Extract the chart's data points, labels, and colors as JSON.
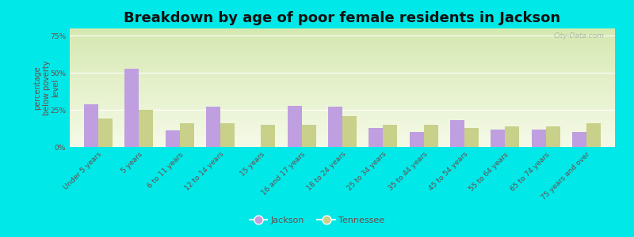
{
  "title": "Breakdown by age of poor female residents in Jackson",
  "ylabel": "percentage\nbelow poverty\nlevel",
  "categories": [
    "Under 5 years",
    "5 years",
    "6 to 11 years",
    "12 to 14 years",
    "15 years",
    "16 and 17 years",
    "18 to 24 years",
    "25 to 34 years",
    "35 to 44 years",
    "45 to 54 years",
    "55 to 64 years",
    "65 to 74 years",
    "75 years and over"
  ],
  "jackson_values": [
    29,
    53,
    11,
    27,
    0,
    28,
    27,
    13,
    10,
    18,
    12,
    12,
    10
  ],
  "tennessee_values": [
    19,
    25,
    16,
    16,
    15,
    15,
    21,
    15,
    15,
    13,
    14,
    14,
    16
  ],
  "jackson_color": "#bf9fdf",
  "tennessee_color": "#c8d08a",
  "plot_bg_top": "#d5e8b0",
  "plot_bg_bottom": "#f5fae8",
  "outer_bg": "#00e8e8",
  "ylim": [
    0,
    80
  ],
  "yticks": [
    0,
    25,
    50,
    75
  ],
  "ytick_labels": [
    "0%",
    "25%",
    "50%",
    "75%"
  ],
  "bar_width": 0.35,
  "title_fontsize": 13,
  "tick_fontsize": 6.5,
  "ylabel_fontsize": 7,
  "legend_labels": [
    "Jackson",
    "Tennessee"
  ],
  "text_color": "#6a4a4a",
  "watermark": "City-Data.com"
}
